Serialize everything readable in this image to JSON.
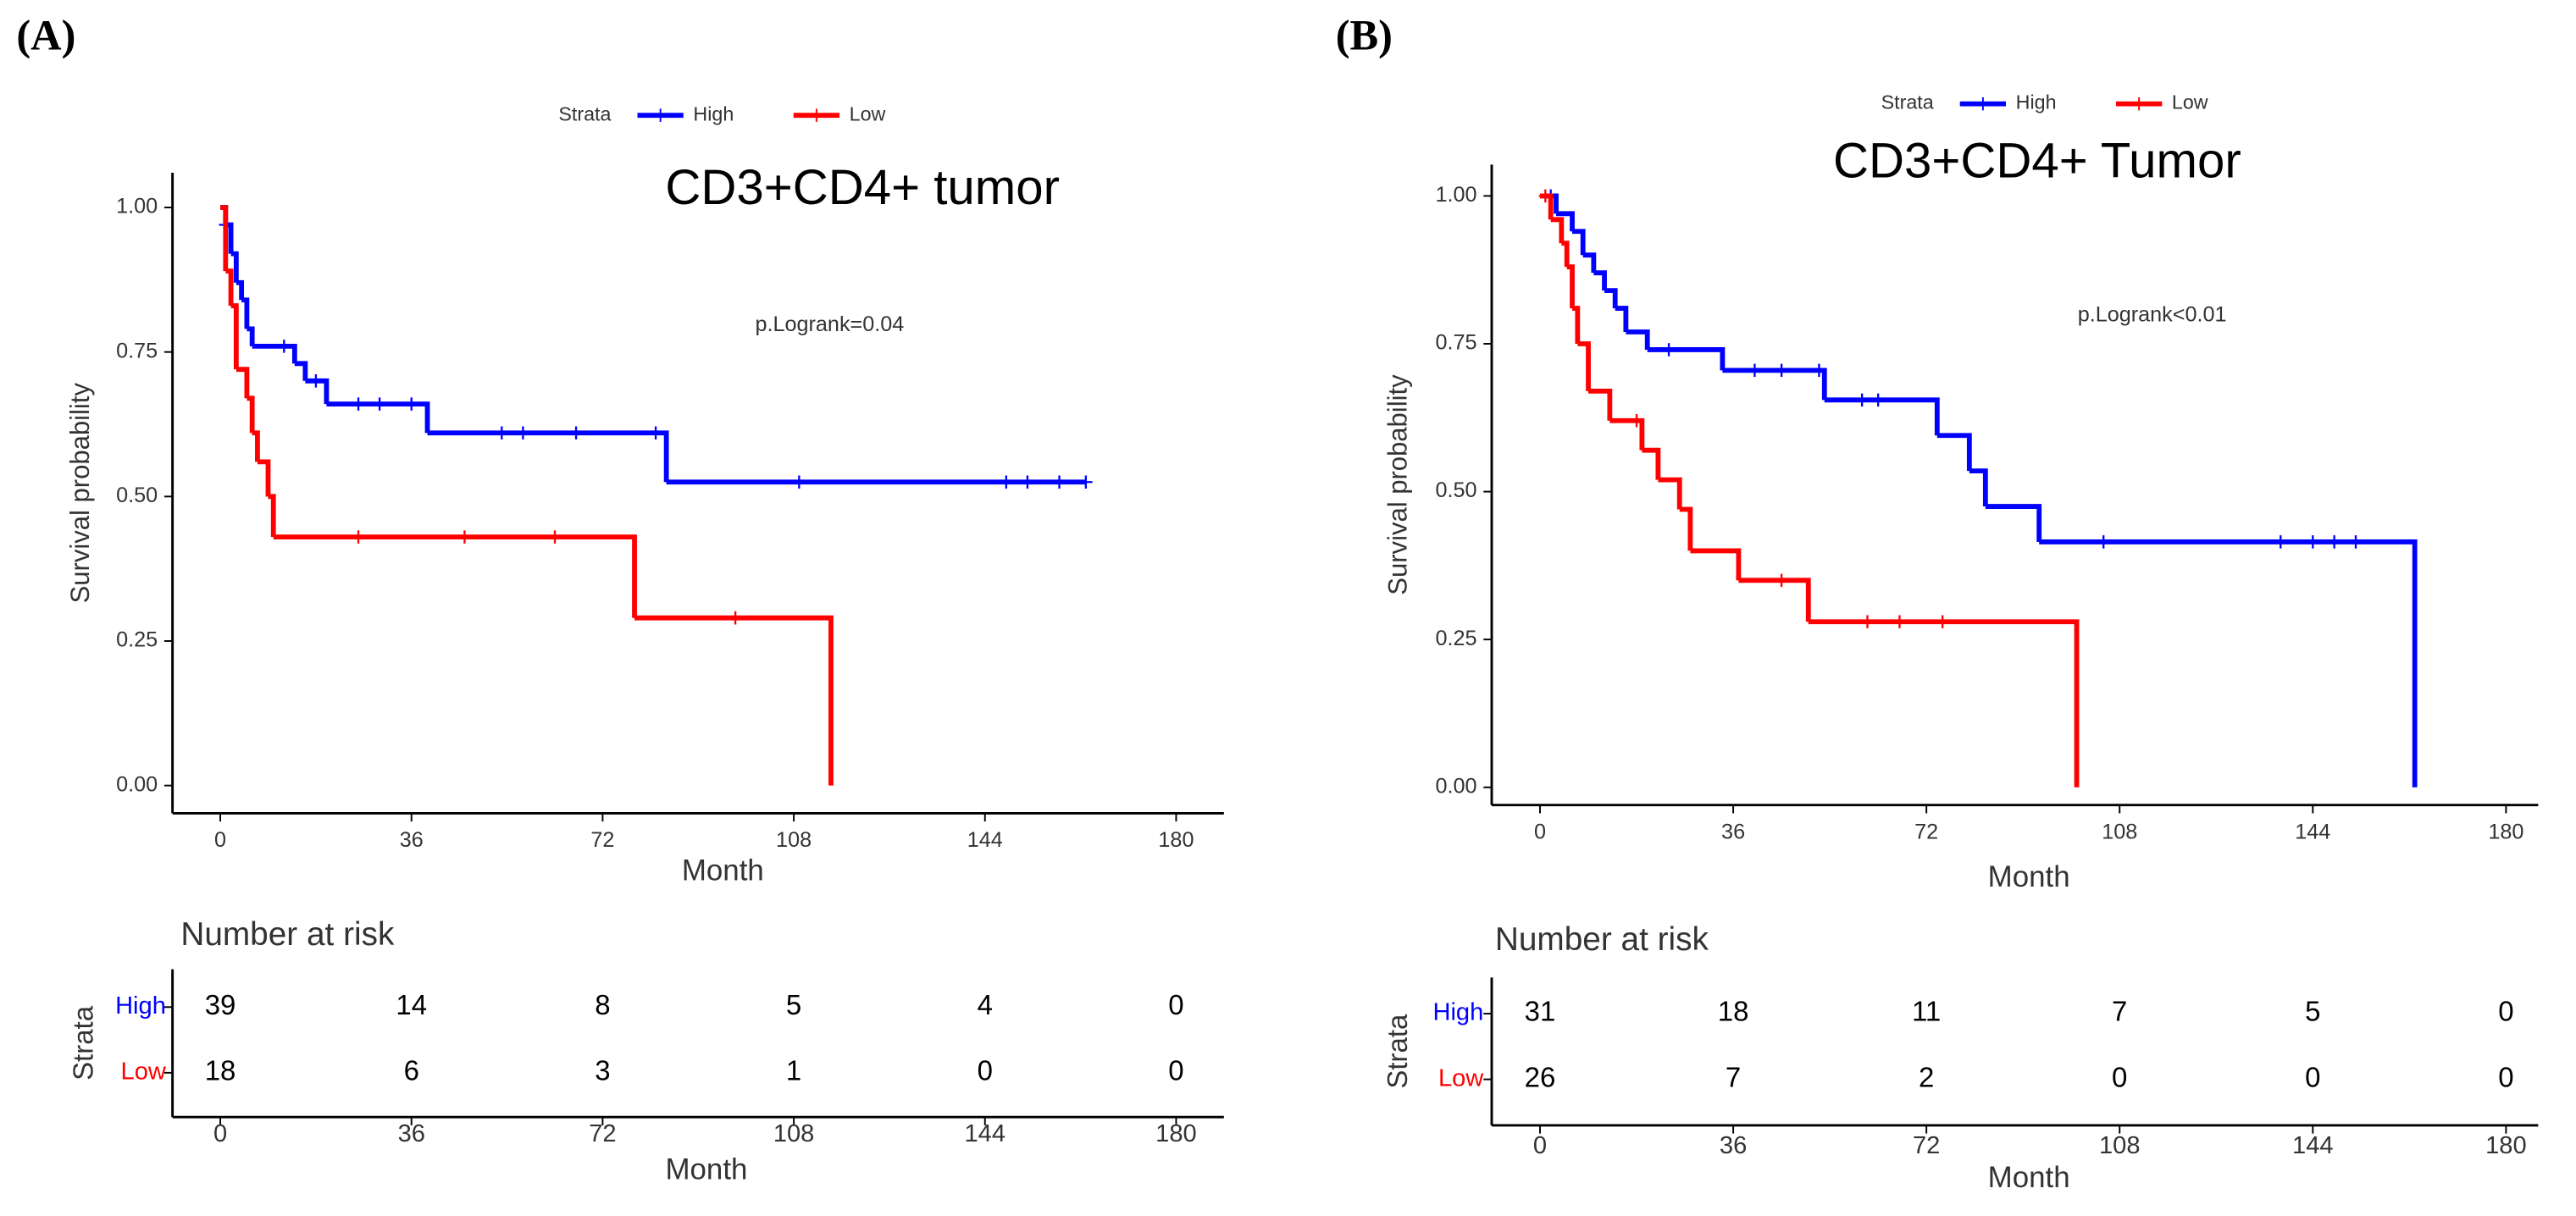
{
  "chart_data": [
    {
      "type": "step",
      "panel_label": "(A)",
      "title": "CD3+CD4+ tumor",
      "annotation": "p.Logrank=0.04",
      "legend_title": "Strata",
      "xlabel": "Month",
      "ylabel": "Survival probability",
      "xlim": [
        -9,
        189
      ],
      "ylim": [
        -0.048,
        1.06
      ],
      "xticks": [
        0,
        36,
        72,
        108,
        144,
        180
      ],
      "yticks": [
        {
          "value": 0,
          "label": "0.00"
        },
        {
          "value": 0.25,
          "label": "0.25"
        },
        {
          "value": 0.5,
          "label": "0.50"
        },
        {
          "value": 0.75,
          "label": "0.75"
        },
        {
          "value": 1,
          "label": "1.00"
        }
      ],
      "series": [
        {
          "name": "High",
          "color": "#0000ff",
          "x": [
            0,
            1,
            2,
            3,
            4,
            5,
            6,
            14,
            16,
            20,
            39,
            84,
            163
          ],
          "values": [
            1.0,
            0.97,
            0.92,
            0.87,
            0.84,
            0.79,
            0.76,
            0.73,
            0.7,
            0.66,
            0.61,
            0.525,
            0.525
          ],
          "censor_x": [
            1,
            12,
            18,
            26,
            30,
            36,
            53,
            57,
            67,
            82,
            109,
            148,
            152,
            158,
            163
          ],
          "censor_values": [
            0.97,
            0.76,
            0.7,
            0.66,
            0.66,
            0.66,
            0.61,
            0.61,
            0.61,
            0.61,
            0.525,
            0.525,
            0.525,
            0.525,
            0.525
          ]
        },
        {
          "name": "Low",
          "color": "#ff0000",
          "x": [
            0,
            1,
            2,
            3,
            5,
            6,
            7,
            9,
            10,
            78,
            115
          ],
          "values": [
            1.0,
            0.89,
            0.83,
            0.72,
            0.67,
            0.61,
            0.56,
            0.5,
            0.43,
            0.29,
            0
          ],
          "censor_x": [
            26,
            46,
            63,
            97
          ],
          "censor_values": [
            0.43,
            0.43,
            0.43,
            0.29
          ]
        }
      ],
      "risk_table": {
        "title": "Number at risk",
        "ylabel": "Strata",
        "xlabel": "Month",
        "xticks": [
          0,
          36,
          72,
          108,
          144,
          180
        ],
        "rows": [
          {
            "name": "High",
            "color": "#0000ff",
            "values": [
              39,
              14,
              8,
              5,
              4,
              0
            ]
          },
          {
            "name": "Low",
            "color": "#ff0000",
            "values": [
              18,
              6,
              3,
              1,
              0,
              0
            ]
          }
        ]
      }
    },
    {
      "type": "step",
      "panel_label": "(B)",
      "title": "CD3+CD4+ Tumor",
      "annotation": "p.Logrank<0.01",
      "legend_title": "Strata",
      "xlabel": "Month",
      "ylabel": "Survival probability",
      "xlim": [
        -9,
        186
      ],
      "ylim": [
        -0.03,
        1.053
      ],
      "xticks": [
        0,
        36,
        72,
        108,
        144,
        180
      ],
      "yticks": [
        {
          "value": 0,
          "label": "0.00"
        },
        {
          "value": 0.25,
          "label": "0.25"
        },
        {
          "value": 0.5,
          "label": "0.50"
        },
        {
          "value": 0.75,
          "label": "0.75"
        },
        {
          "value": 1,
          "label": "1.00"
        }
      ],
      "series": [
        {
          "name": "High",
          "color": "#0000ff",
          "x": [
            0,
            3,
            6,
            8,
            10,
            12,
            14,
            16,
            20,
            34,
            53,
            74,
            80,
            83,
            93,
            163
          ],
          "values": [
            1.0,
            0.97,
            0.94,
            0.9,
            0.87,
            0.84,
            0.81,
            0.77,
            0.74,
            0.705,
            0.655,
            0.595,
            0.535,
            0.475,
            0.415,
            0
          ],
          "censor_x": [
            2,
            24,
            40,
            45,
            52,
            60,
            63,
            105,
            138,
            144,
            148,
            152
          ],
          "censor_values": [
            1.0,
            0.74,
            0.705,
            0.705,
            0.705,
            0.655,
            0.655,
            0.415,
            0.415,
            0.415,
            0.415,
            0.415
          ]
        },
        {
          "name": "Low",
          "color": "#ff0000",
          "x": [
            0,
            2,
            4,
            5,
            6,
            7,
            9,
            13,
            19,
            22,
            26,
            28,
            37,
            50,
            100
          ],
          "values": [
            1.0,
            0.96,
            0.92,
            0.88,
            0.81,
            0.75,
            0.67,
            0.62,
            0.57,
            0.52,
            0.47,
            0.4,
            0.35,
            0.28,
            0
          ],
          "censor_x": [
            1,
            18,
            45,
            61,
            67,
            75
          ],
          "censor_values": [
            1.0,
            0.62,
            0.35,
            0.28,
            0.28,
            0.28
          ]
        }
      ],
      "risk_table": {
        "title": "Number at risk",
        "ylabel": "Strata",
        "xlabel": "Month",
        "xticks": [
          0,
          36,
          72,
          108,
          144,
          180
        ],
        "rows": [
          {
            "name": "High",
            "color": "#0000ff",
            "values": [
              31,
              18,
              11,
              7,
              5,
              0
            ]
          },
          {
            "name": "Low",
            "color": "#ff0000",
            "values": [
              26,
              7,
              2,
              0,
              0,
              0
            ]
          }
        ]
      }
    }
  ]
}
